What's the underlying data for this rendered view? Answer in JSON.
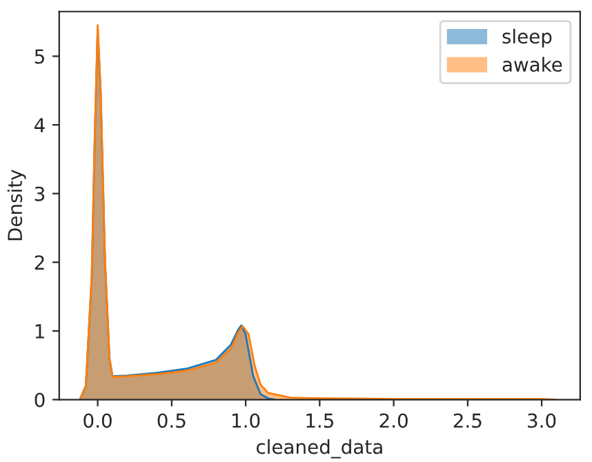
{
  "chart_data": {
    "type": "area",
    "xlabel": "cleaned_data",
    "ylabel": "Density",
    "xlim": [
      -0.26,
      3.26
    ],
    "ylim": [
      0,
      5.65
    ],
    "xticks": [
      {
        "value": 0,
        "label": "0.0"
      },
      {
        "value": 0.5,
        "label": "0.5"
      },
      {
        "value": 1,
        "label": "1.0"
      },
      {
        "value": 1.5,
        "label": "1.5"
      },
      {
        "value": 2,
        "label": "2.0"
      },
      {
        "value": 2.5,
        "label": "2.5"
      },
      {
        "value": 3,
        "label": "3.0"
      }
    ],
    "yticks": [
      0,
      1,
      2,
      3,
      4,
      5
    ],
    "grid": false,
    "legend": "top right",
    "series": [
      {
        "name": "sleep",
        "color": "#1f77b4",
        "x": [
          -0.12,
          -0.08,
          -0.04,
          -0.02,
          0.0,
          0.02,
          0.05,
          0.08,
          0.1,
          0.2,
          0.4,
          0.6,
          0.8,
          0.9,
          0.95,
          0.97,
          1.0,
          1.05,
          1.1,
          1.15,
          1.2
        ],
        "values": [
          0,
          0.2,
          1.8,
          3.8,
          5.4,
          4.5,
          2.0,
          0.6,
          0.34,
          0.35,
          0.39,
          0.45,
          0.58,
          0.8,
          1.02,
          1.08,
          0.95,
          0.35,
          0.08,
          0.02,
          0
        ]
      },
      {
        "name": "awake",
        "color": "#ff7f0e",
        "x": [
          -0.12,
          -0.08,
          -0.04,
          -0.02,
          0.0,
          0.02,
          0.05,
          0.08,
          0.1,
          0.2,
          0.4,
          0.6,
          0.8,
          0.9,
          0.95,
          0.98,
          1.02,
          1.06,
          1.1,
          1.15,
          1.3,
          1.5,
          2.0,
          2.5,
          3.0,
          3.1
        ],
        "values": [
          0,
          0.2,
          1.8,
          3.8,
          5.45,
          4.5,
          2.0,
          0.6,
          0.33,
          0.34,
          0.37,
          0.42,
          0.54,
          0.74,
          0.98,
          1.07,
          0.95,
          0.5,
          0.22,
          0.1,
          0.03,
          0.02,
          0.01,
          0.01,
          0.01,
          0
        ]
      }
    ]
  }
}
